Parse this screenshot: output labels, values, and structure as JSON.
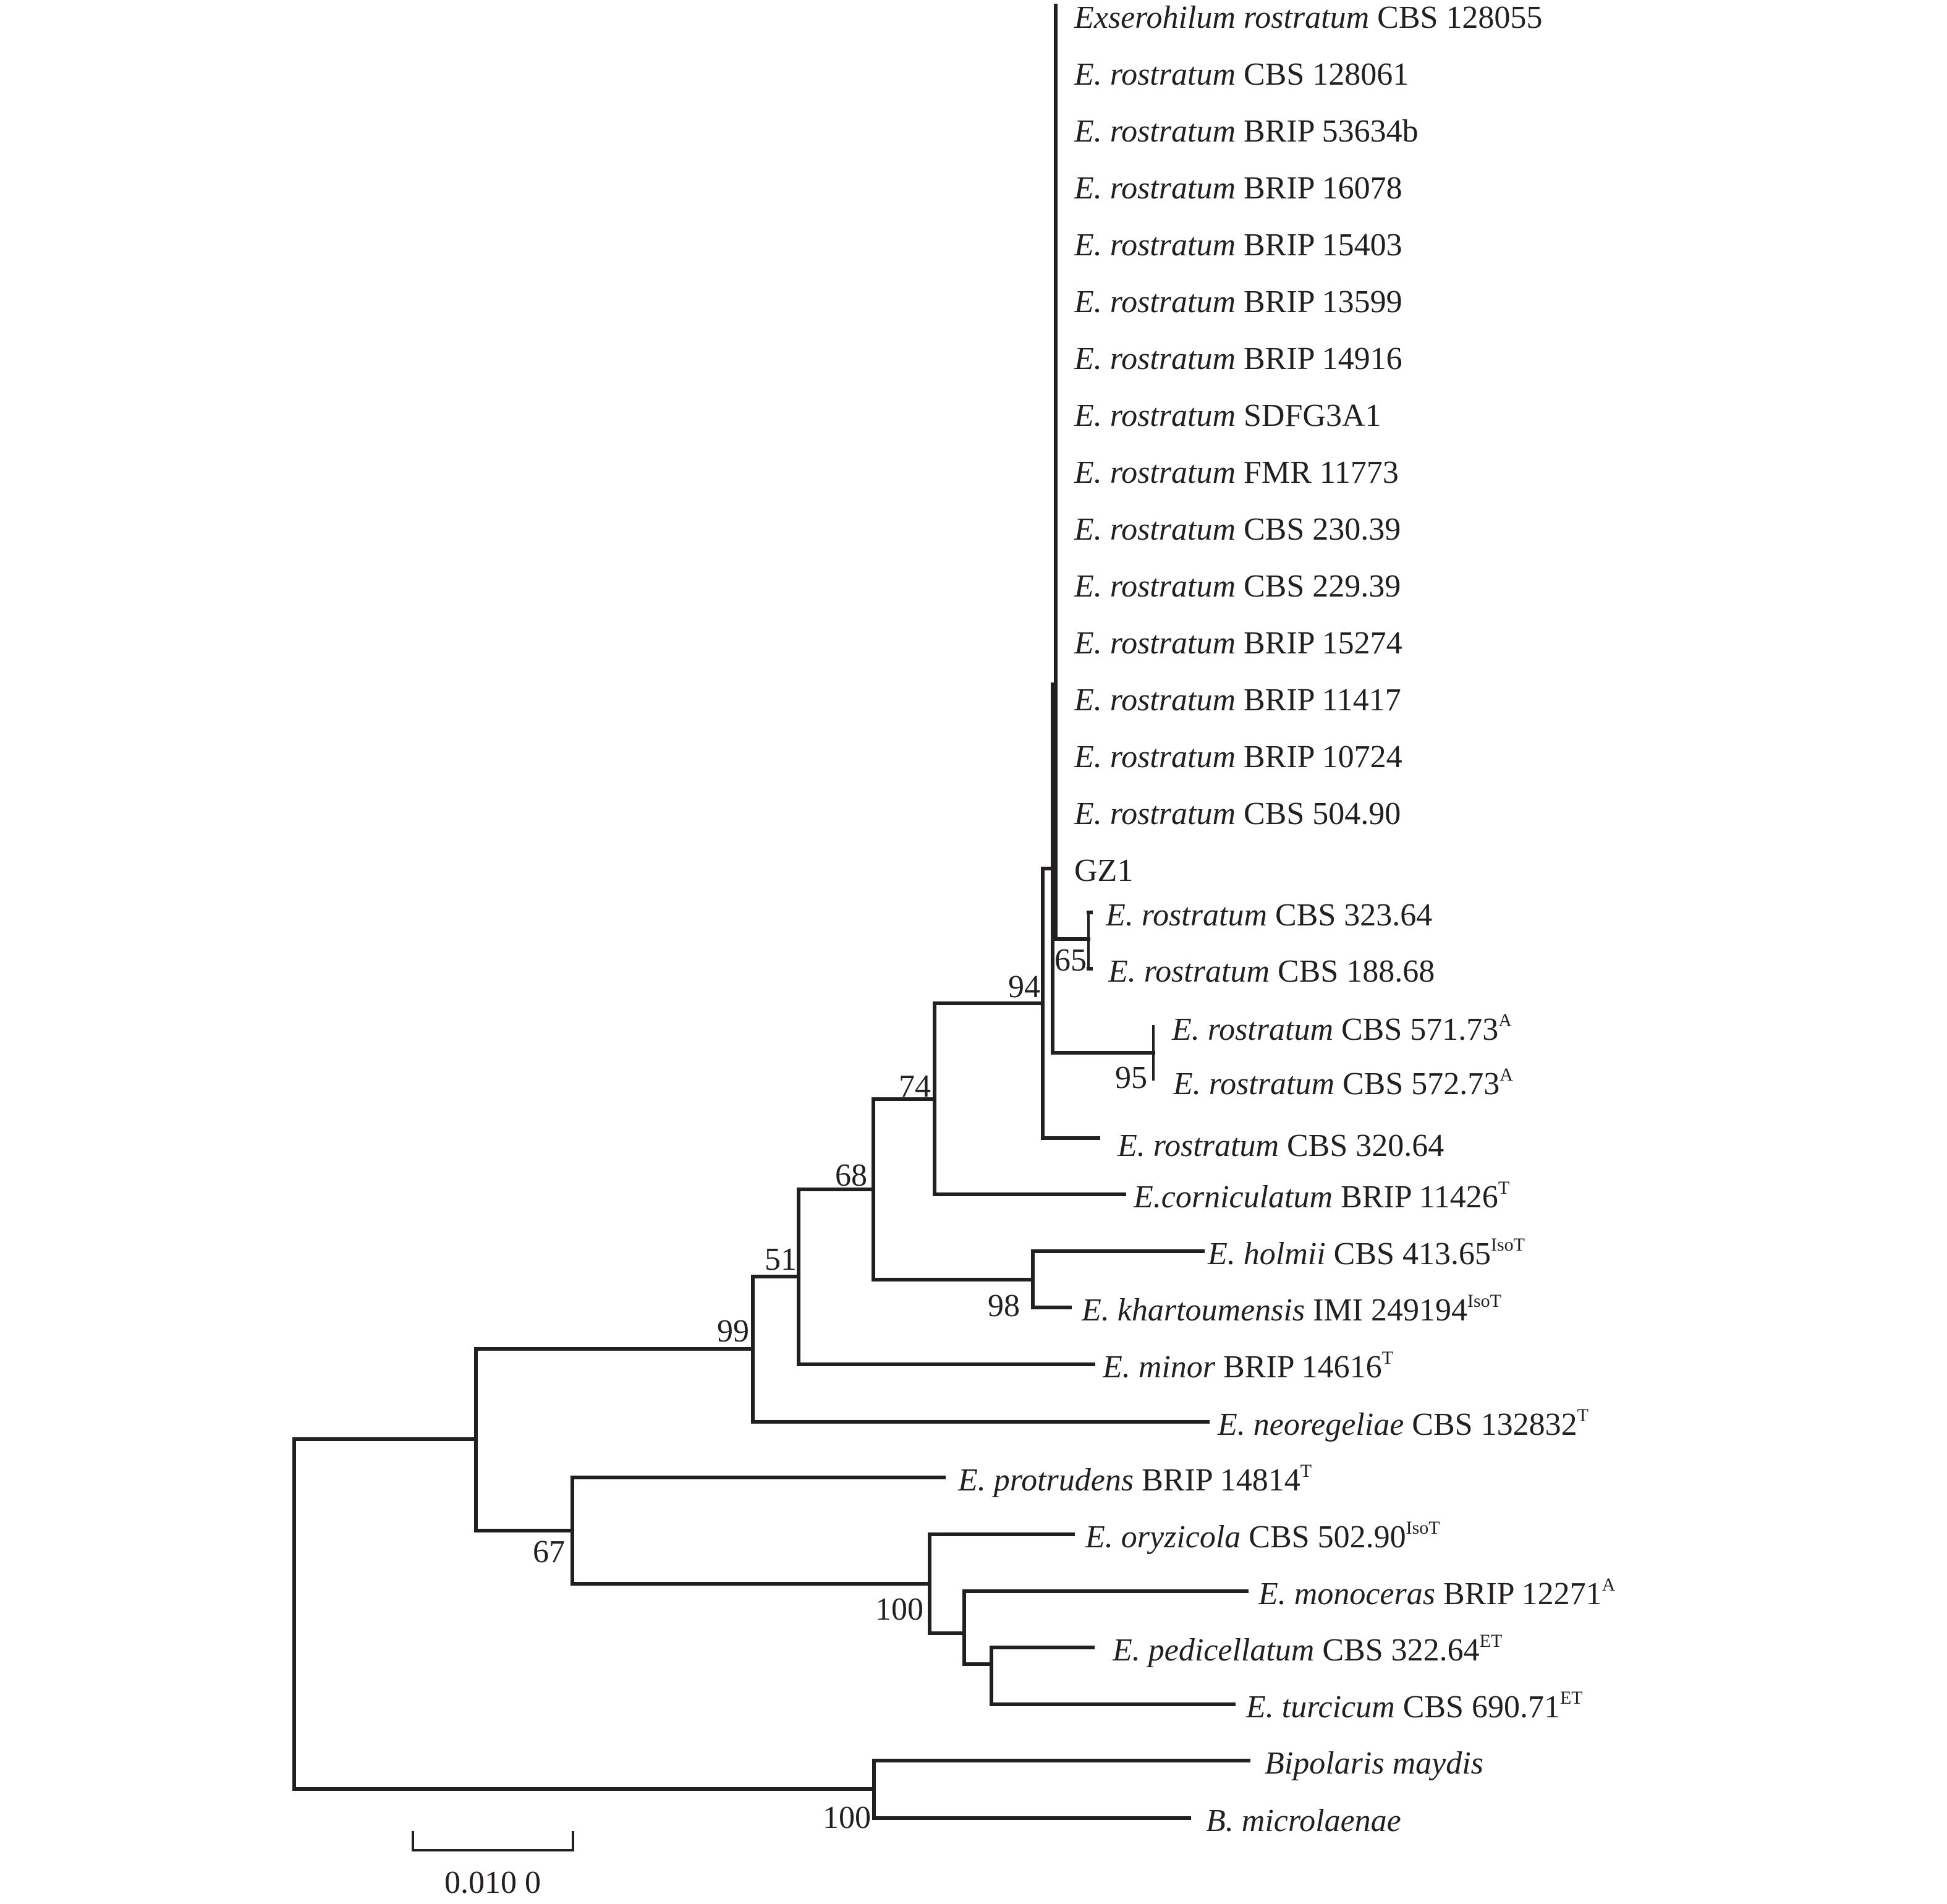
{
  "figure": {
    "type": "phylogenetic-tree",
    "scale_bar": {
      "value": 0.01,
      "label": "0.010 0"
    },
    "colors": {
      "ink": "#231f20",
      "background": "#ffffff"
    }
  },
  "taxa": [
    {
      "id": "t01",
      "italic": "Exserohilum rostratum",
      "strain": "CBS 128055",
      "sup": ""
    },
    {
      "id": "t02",
      "italic": "E. rostratum",
      "strain": "CBS 128061",
      "sup": ""
    },
    {
      "id": "t03",
      "italic": "E. rostratum",
      "strain": "BRIP 53634b",
      "sup": ""
    },
    {
      "id": "t04",
      "italic": "E. rostratum",
      "strain": "BRIP 16078",
      "sup": ""
    },
    {
      "id": "t05",
      "italic": "E. rostratum",
      "strain": "BRIP 15403",
      "sup": ""
    },
    {
      "id": "t06",
      "italic": "E. rostratum",
      "strain": "BRIP 13599",
      "sup": ""
    },
    {
      "id": "t07",
      "italic": "E. rostratum",
      "strain": "BRIP 14916",
      "sup": ""
    },
    {
      "id": "t08",
      "italic": "E. rostratum",
      "strain": "SDFG3A1",
      "sup": ""
    },
    {
      "id": "t09",
      "italic": "E. rostratum",
      "strain": "FMR 11773",
      "sup": ""
    },
    {
      "id": "t10",
      "italic": "E. rostratum",
      "strain": "CBS 230.39",
      "sup": ""
    },
    {
      "id": "t11",
      "italic": "E. rostratum",
      "strain": "CBS 229.39",
      "sup": ""
    },
    {
      "id": "t12",
      "italic": "E. rostratum",
      "strain": "BRIP 15274",
      "sup": ""
    },
    {
      "id": "t13",
      "italic": "E. rostratum",
      "strain": "BRIP 11417",
      "sup": ""
    },
    {
      "id": "t14",
      "italic": "E. rostratum",
      "strain": "BRIP 10724",
      "sup": ""
    },
    {
      "id": "t15",
      "italic": "E. rostratum",
      "strain": "CBS 504.90",
      "sup": ""
    },
    {
      "id": "t16",
      "italic": "",
      "strain": "GZ1",
      "sup": ""
    },
    {
      "id": "t17",
      "italic": "E. rostratum",
      "strain": "CBS 323.64",
      "sup": ""
    },
    {
      "id": "t18",
      "italic": "E. rostratum",
      "strain": "CBS 188.68",
      "sup": ""
    },
    {
      "id": "t19",
      "italic": "E. rostratum",
      "strain": "CBS 571.73",
      "sup": "A"
    },
    {
      "id": "t20",
      "italic": "E. rostratum",
      "strain": "CBS 572.73",
      "sup": "A"
    },
    {
      "id": "t21",
      "italic": "E. rostratum",
      "strain": "CBS 320.64",
      "sup": ""
    },
    {
      "id": "t22",
      "italic": "E.corniculatum",
      "strain": "BRIP 11426",
      "sup": "T"
    },
    {
      "id": "t23",
      "italic": "E. holmii",
      "strain": "CBS 413.65",
      "sup": "IsoT"
    },
    {
      "id": "t24",
      "italic": "E. khartoumensis",
      "strain": "IMI 249194",
      "sup": "IsoT"
    },
    {
      "id": "t25",
      "italic": "E. minor",
      "strain": "BRIP 14616",
      "sup": "T"
    },
    {
      "id": "t26",
      "italic": "E. neoregeliae",
      "strain": "CBS 132832",
      "sup": "T"
    },
    {
      "id": "t27",
      "italic": "E. protrudens",
      "strain": "BRIP 14814",
      "sup": "T"
    },
    {
      "id": "t28",
      "italic": "E. oryzicola",
      "strain": "CBS 502.90",
      "sup": "IsoT"
    },
    {
      "id": "t29",
      "italic": "E. monoceras",
      "strain": "BRIP 12271",
      "sup": "A"
    },
    {
      "id": "t30",
      "italic": "E. pedicellatum",
      "strain": "CBS 322.64",
      "sup": "ET"
    },
    {
      "id": "t31",
      "italic": "E. turcicum",
      "strain": "CBS 690.71",
      "sup": "ET"
    },
    {
      "id": "t32",
      "italic": "Bipolaris maydis",
      "strain": "",
      "sup": ""
    },
    {
      "id": "t33",
      "italic": "B. microlaenae",
      "strain": "",
      "sup": ""
    }
  ],
  "bootstrap": [
    {
      "id": "b65",
      "value": "65"
    },
    {
      "id": "b95",
      "value": "95"
    },
    {
      "id": "b94",
      "value": "94"
    },
    {
      "id": "b74",
      "value": "74"
    },
    {
      "id": "b68",
      "value": "68"
    },
    {
      "id": "b98",
      "value": "98"
    },
    {
      "id": "b51",
      "value": "51"
    },
    {
      "id": "b99",
      "value": "99"
    },
    {
      "id": "b67",
      "value": "67"
    },
    {
      "id": "b100a",
      "value": "100"
    },
    {
      "id": "b100b",
      "value": "100"
    }
  ]
}
